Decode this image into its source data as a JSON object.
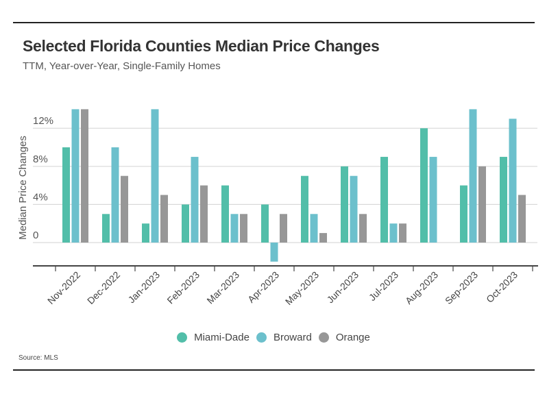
{
  "header": {
    "title": "Selected Florida Counties Median Price Changes",
    "subtitle": "TTM, Year-over-Year, Single-Family Homes"
  },
  "footer": {
    "source": "Source: MLS"
  },
  "chart_data": {
    "type": "bar",
    "title": "Selected Florida Counties Median Price Changes",
    "subtitle": "TTM, Year-over-Year, Single-Family Homes",
    "xlabel": "",
    "ylabel": "Median Price Changes",
    "ylim": [
      -3,
      14
    ],
    "yticks": [
      0,
      4,
      8,
      12
    ],
    "ytick_labels": [
      "0",
      "4%",
      "8%",
      "12%"
    ],
    "grid": true,
    "legend_position": "bottom-center",
    "categories": [
      "Nov-2022",
      "Dec-2022",
      "Jan-2023",
      "Feb-2023",
      "Mar-2023",
      "Apr-2023",
      "May-2023",
      "Jun-2023",
      "Jul-2023",
      "Aug-2023",
      "Sep-2023",
      "Oct-2023"
    ],
    "series": [
      {
        "name": "Miami-Dade",
        "color": "#52bea9",
        "values": [
          10,
          3,
          2,
          4,
          6,
          4,
          7,
          8,
          9,
          12,
          6,
          9
        ]
      },
      {
        "name": "Broward",
        "color": "#6cc0cc",
        "values": [
          14,
          10,
          14,
          9,
          3,
          -2,
          3,
          7,
          2,
          9,
          14,
          13
        ]
      },
      {
        "name": "Orange",
        "color": "#979797",
        "values": [
          14,
          7,
          5,
          6,
          3,
          3,
          1,
          3,
          2,
          0,
          8,
          5
        ]
      }
    ],
    "source": "Source: MLS"
  }
}
